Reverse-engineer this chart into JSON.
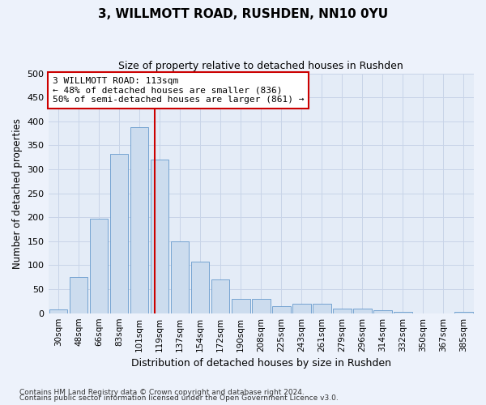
{
  "title": "3, WILLMOTT ROAD, RUSHDEN, NN10 0YU",
  "subtitle": "Size of property relative to detached houses in Rushden",
  "xlabel": "Distribution of detached houses by size in Rushden",
  "ylabel": "Number of detached properties",
  "categories": [
    "30sqm",
    "48sqm",
    "66sqm",
    "83sqm",
    "101sqm",
    "119sqm",
    "137sqm",
    "154sqm",
    "172sqm",
    "190sqm",
    "208sqm",
    "225sqm",
    "243sqm",
    "261sqm",
    "279sqm",
    "296sqm",
    "314sqm",
    "332sqm",
    "350sqm",
    "367sqm",
    "385sqm"
  ],
  "values": [
    8,
    75,
    197,
    332,
    388,
    320,
    150,
    108,
    70,
    30,
    30,
    15,
    20,
    20,
    10,
    10,
    6,
    2,
    0,
    0,
    2
  ],
  "bar_color": "#ccdcee",
  "bar_edge_color": "#6699cc",
  "vline_x": 4.75,
  "vline_color": "#cc0000",
  "annotation_text": "3 WILLMOTT ROAD: 113sqm\n← 48% of detached houses are smaller (836)\n50% of semi-detached houses are larger (861) →",
  "annotation_box_color": "#ffffff",
  "annotation_box_edge": "#cc0000",
  "ylim": [
    0,
    500
  ],
  "yticks": [
    0,
    50,
    100,
    150,
    200,
    250,
    300,
    350,
    400,
    450,
    500
  ],
  "grid_color": "#c8d4e8",
  "footnote1": "Contains HM Land Registry data © Crown copyright and database right 2024.",
  "footnote2": "Contains public sector information licensed under the Open Government Licence v3.0.",
  "bg_color": "#edf2fb",
  "plot_bg_color": "#e4ecf7"
}
